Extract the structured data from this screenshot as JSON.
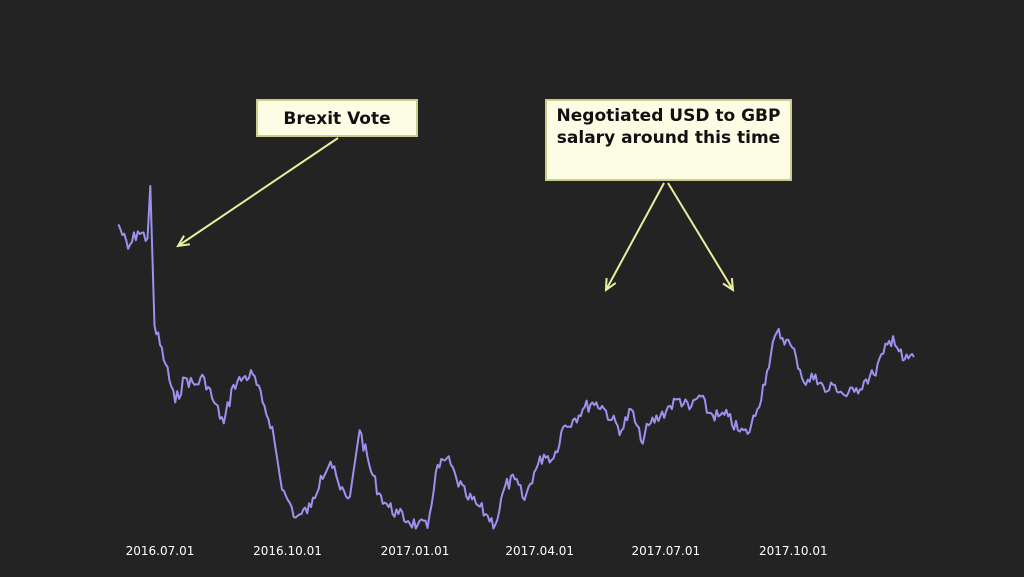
{
  "annotations": {
    "brexit": "Brexit Vote",
    "negotiated": "Negotiated USD to GBP salary around this time"
  },
  "colors": {
    "background": "#242323",
    "line": "#9b92f0",
    "arrow": "#e7ee9c",
    "callout_bg": "#fdfde6",
    "tick_text": "#ffffff"
  },
  "chart_data": {
    "type": "line",
    "title": "",
    "xlabel": "",
    "ylabel": "",
    "grid": false,
    "legend": "none",
    "x_tick_labels": [
      "2016.07.01",
      "2016.10.01",
      "2017.01.01",
      "2017.04.01",
      "2017.07.01",
      "2017.10.01"
    ],
    "ylim": [
      0,
      1
    ],
    "series": [
      {
        "name": "",
        "x": [
          "2016.06.01",
          "2016.06.08",
          "2016.06.15",
          "2016.06.22",
          "2016.06.24",
          "2016.06.27",
          "2016.07.05",
          "2016.07.12",
          "2016.07.19",
          "2016.07.26",
          "2016.08.02",
          "2016.08.09",
          "2016.08.16",
          "2016.08.23",
          "2016.08.30",
          "2016.09.06",
          "2016.09.13",
          "2016.09.20",
          "2016.09.27",
          "2016.10.04",
          "2016.10.07",
          "2016.10.11",
          "2016.10.18",
          "2016.10.25",
          "2016.11.01",
          "2016.11.08",
          "2016.11.15",
          "2016.11.22",
          "2016.11.29",
          "2016.12.06",
          "2016.12.13",
          "2016.12.20",
          "2016.12.27",
          "2017.01.03",
          "2017.01.10",
          "2017.01.16",
          "2017.01.24",
          "2017.01.31",
          "2017.02.07",
          "2017.02.14",
          "2017.02.21",
          "2017.02.28",
          "2017.03.07",
          "2017.03.14",
          "2017.03.21",
          "2017.03.28",
          "2017.04.04",
          "2017.04.11",
          "2017.04.18",
          "2017.04.25",
          "2017.05.02",
          "2017.05.09",
          "2017.05.16",
          "2017.05.23",
          "2017.05.30",
          "2017.06.06",
          "2017.06.13",
          "2017.06.20",
          "2017.06.27",
          "2017.07.04",
          "2017.07.11",
          "2017.07.18",
          "2017.07.25",
          "2017.08.01",
          "2017.08.08",
          "2017.08.15",
          "2017.08.22",
          "2017.08.29",
          "2017.09.05",
          "2017.09.12",
          "2017.09.19",
          "2017.09.26",
          "2017.10.03",
          "2017.10.10",
          "2017.10.17",
          "2017.10.24",
          "2017.10.31",
          "2017.11.07",
          "2017.11.14",
          "2017.11.21",
          "2017.11.28",
          "2017.12.05",
          "2017.12.12",
          "2017.12.19",
          "2017.12.27"
        ],
        "values": [
          0.89,
          0.82,
          0.87,
          0.85,
          1.0,
          0.6,
          0.49,
          0.38,
          0.45,
          0.43,
          0.45,
          0.38,
          0.32,
          0.43,
          0.45,
          0.46,
          0.38,
          0.31,
          0.13,
          0.08,
          0.05,
          0.06,
          0.08,
          0.17,
          0.21,
          0.13,
          0.11,
          0.3,
          0.2,
          0.12,
          0.08,
          0.06,
          0.04,
          0.03,
          0.02,
          0.18,
          0.22,
          0.16,
          0.11,
          0.09,
          0.06,
          0.03,
          0.14,
          0.16,
          0.1,
          0.18,
          0.23,
          0.22,
          0.31,
          0.33,
          0.36,
          0.38,
          0.37,
          0.33,
          0.3,
          0.36,
          0.27,
          0.32,
          0.34,
          0.37,
          0.39,
          0.36,
          0.4,
          0.35,
          0.34,
          0.34,
          0.3,
          0.29,
          0.36,
          0.47,
          0.58,
          0.56,
          0.51,
          0.43,
          0.46,
          0.41,
          0.43,
          0.4,
          0.41,
          0.44,
          0.46,
          0.52,
          0.57,
          0.5,
          0.51
        ]
      }
    ]
  }
}
